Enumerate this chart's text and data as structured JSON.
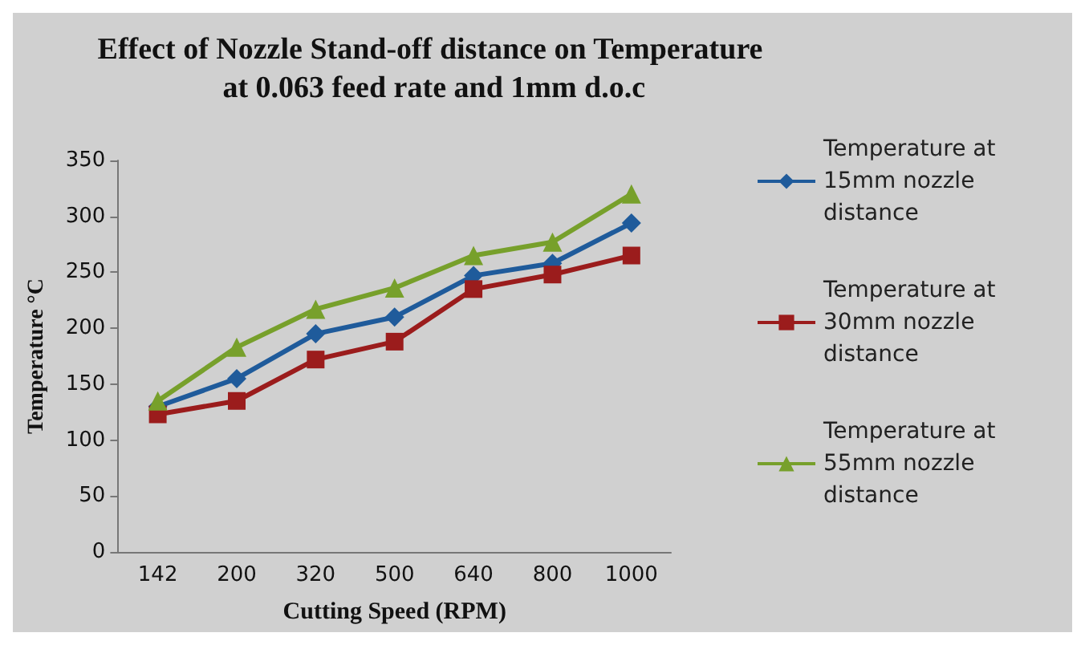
{
  "chart_data": {
    "type": "line",
    "title": "Effect of Nozzle Stand-off distance on Temperature at 0.063 feed rate and 1mm d.o.c",
    "xlabel": "Cutting Speed (RPM)",
    "ylabel": "Temperature °C",
    "categories": [
      "142",
      "200",
      "320",
      "500",
      "640",
      "800",
      "1000"
    ],
    "series": [
      {
        "name": "Temperature at 15mm nozzle distance",
        "color": "#1f5b9b",
        "marker": "diamond",
        "values": [
          130,
          155,
          195,
          210,
          247,
          258,
          294
        ]
      },
      {
        "name": "Temperature at 30mm nozzle distance",
        "color": "#9b1c1c",
        "marker": "square",
        "values": [
          123,
          135,
          172,
          188,
          235,
          248,
          265
        ]
      },
      {
        "name": "Temperature at 55mm nozzle distance",
        "color": "#77a02b",
        "marker": "triangle",
        "values": [
          135,
          183,
          217,
          236,
          265,
          277,
          320
        ]
      }
    ],
    "ylim": [
      0,
      350
    ],
    "yticks": [
      0,
      50,
      100,
      150,
      200,
      250,
      300,
      350
    ],
    "grid": false,
    "legend": "right"
  }
}
